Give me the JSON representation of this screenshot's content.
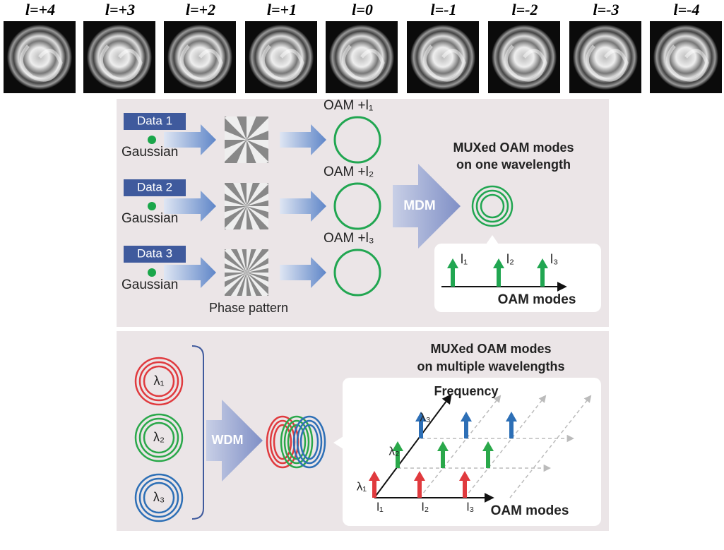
{
  "beam_profiles": {
    "labels": [
      "l=+4",
      "l=+3",
      "l=+2",
      "l=+1",
      "l=0",
      "l=-1",
      "l=-2",
      "l=-3",
      "l=-4"
    ]
  },
  "mode_division": {
    "inputs": [
      {
        "data": "Data 1",
        "source": "Gaussian",
        "mode": "OAM +l₁"
      },
      {
        "data": "Data 2",
        "source": "Gaussian",
        "mode": "OAM +l₂"
      },
      {
        "data": "Data 3",
        "source": "Gaussian",
        "mode": "OAM +l₃"
      }
    ],
    "phase_label": "Phase pattern",
    "mux_label": "MDM",
    "title": [
      "MUXed OAM modes",
      "on one wavelength"
    ],
    "inset": {
      "modes": [
        "l₁",
        "l₂",
        "l₃"
      ],
      "axis_label": "OAM modes"
    }
  },
  "wavelength_division": {
    "wavelengths": [
      "λ₁",
      "λ₂",
      "λ₃"
    ],
    "mux_label": "WDM",
    "title": [
      "MUXed OAM modes",
      "on multiple wavelengths"
    ],
    "inset": {
      "y_axis_label": "Frequency",
      "wavelengths": [
        "λ₁",
        "λ₂",
        "λ₃"
      ],
      "modes": [
        "l₁",
        "l₂",
        "l₃"
      ],
      "x_axis_label": "OAM modes"
    }
  }
}
